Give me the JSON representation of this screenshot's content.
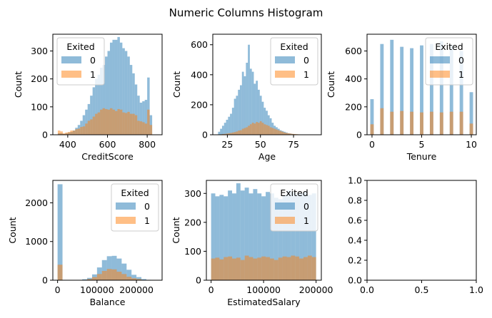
{
  "figure": {
    "title": "Numeric Columns Histogram"
  },
  "colors": {
    "series_0": "#1f77b4",
    "series_1": "#ff7f0e",
    "bar_alpha": 0.5
  },
  "chart_data": [
    {
      "type": "bar",
      "name": "CreditScore",
      "xlabel": "CreditScore",
      "ylabel": "Count",
      "xlim": [
        325,
        875
      ],
      "ylim": [
        0,
        360
      ],
      "xticks": [
        400,
        600,
        800
      ],
      "yticks": [
        0,
        100,
        200,
        300
      ],
      "legend": {
        "title": "Exited",
        "placement": "top-left",
        "labels": [
          "0",
          "1"
        ]
      },
      "bin_start": 350,
      "bin_width": 12.5,
      "series": [
        {
          "name": "0",
          "values": [
            5,
            5,
            3,
            5,
            8,
            10,
            15,
            25,
            35,
            50,
            70,
            90,
            110,
            140,
            170,
            200,
            215,
            240,
            250,
            280,
            300,
            330,
            340,
            340,
            350,
            330,
            310,
            300,
            280,
            250,
            220,
            180,
            140,
            115,
            120,
            125,
            205,
            70
          ]
        },
        {
          "name": "1",
          "values": [
            15,
            12,
            5,
            8,
            10,
            15,
            15,
            20,
            22,
            28,
            30,
            40,
            50,
            55,
            65,
            75,
            80,
            90,
            95,
            92,
            90,
            95,
            90,
            85,
            92,
            90,
            80,
            78,
            82,
            75,
            75,
            70,
            50,
            48,
            45,
            40,
            90,
            35
          ]
        }
      ]
    },
    {
      "type": "bar",
      "name": "Age",
      "xlabel": "Age",
      "ylabel": "Count",
      "xlim": [
        14,
        96
      ],
      "ylim": [
        0,
        670
      ],
      "xticks": [
        25,
        50,
        75
      ],
      "yticks": [
        0,
        200,
        400,
        600
      ],
      "legend": {
        "title": "Exited",
        "placement": "top-right",
        "labels": [
          "0",
          "1"
        ]
      },
      "bin_start": 18,
      "bin_width": 1.5,
      "series": [
        {
          "name": "0",
          "values": [
            20,
            40,
            60,
            80,
            100,
            120,
            140,
            180,
            240,
            260,
            300,
            330,
            420,
            390,
            480,
            600,
            440,
            420,
            340,
            360,
            300,
            260,
            220,
            180,
            160,
            130,
            110,
            80,
            60,
            50,
            40,
            30,
            25,
            20,
            15,
            10,
            8,
            5,
            4,
            3,
            2,
            2,
            1,
            1,
            1,
            1,
            0,
            0,
            1,
            1
          ]
        },
        {
          "name": "1",
          "values": [
            2,
            3,
            5,
            6,
            8,
            10,
            12,
            15,
            18,
            22,
            28,
            30,
            40,
            45,
            50,
            60,
            70,
            80,
            75,
            85,
            80,
            90,
            80,
            70,
            65,
            60,
            50,
            45,
            40,
            35,
            30,
            25,
            20,
            15,
            12,
            10,
            8,
            6,
            5,
            4,
            3,
            2,
            2,
            1,
            1,
            1,
            0,
            0,
            0,
            0
          ]
        }
      ]
    },
    {
      "type": "bar",
      "name": "Tenure",
      "xlabel": "Tenure",
      "ylabel": "Count",
      "xlim": [
        -0.5,
        10.5
      ],
      "ylim": [
        0,
        720
      ],
      "xticks": [
        0,
        5,
        10
      ],
      "yticks": [
        0,
        200,
        400,
        600
      ],
      "legend": {
        "title": "Exited",
        "placement": "top-right",
        "labels": [
          "0",
          "1"
        ]
      },
      "bin_start": -0.1,
      "bin_width": 0.5,
      "bar_width": 0.35,
      "series": [
        {
          "name": "0",
          "values": [
            255,
            650,
            680,
            630,
            620,
            640,
            650,
            670,
            640,
            600,
            305
          ]
        },
        {
          "name": "1",
          "values": [
            75,
            190,
            165,
            170,
            165,
            160,
            165,
            160,
            165,
            165,
            80
          ]
        }
      ],
      "categories": [
        0,
        1,
        2,
        3,
        4,
        5,
        6,
        7,
        8,
        9,
        10
      ]
    },
    {
      "type": "bar",
      "name": "Balance",
      "xlabel": "Balance",
      "ylabel": "Count",
      "xlim": [
        -12000,
        265000
      ],
      "ylim": [
        0,
        2580
      ],
      "xticks": [
        0,
        100000,
        200000
      ],
      "yticks": [
        0,
        1000,
        2000
      ],
      "legend": {
        "title": "Exited",
        "placement": "top-right",
        "labels": [
          "0",
          "1"
        ]
      },
      "bin_start": 0,
      "bin_width": 12500,
      "series": [
        {
          "name": "0",
          "values": [
            2480,
            0,
            0,
            0,
            5,
            25,
            60,
            150,
            330,
            520,
            620,
            630,
            560,
            430,
            270,
            140,
            80,
            30,
            10,
            5
          ]
        },
        {
          "name": "1",
          "values": [
            400,
            0,
            0,
            0,
            3,
            10,
            30,
            80,
            160,
            240,
            290,
            280,
            220,
            160,
            90,
            50,
            30,
            10,
            5,
            2
          ]
        }
      ]
    },
    {
      "type": "bar",
      "name": "EstimatedSalary",
      "xlabel": "EstimatedSalary",
      "ylabel": "Count",
      "xlim": [
        -9000,
        210000
      ],
      "ylim": [
        0,
        345
      ],
      "xticks": [
        0,
        100000,
        200000
      ],
      "yticks": [
        0,
        100,
        200,
        300
      ],
      "legend": {
        "title": "Exited",
        "placement": "top-right",
        "labels": [
          "0",
          "1"
        ]
      },
      "bin_start": 0,
      "bin_width": 8000,
      "series": [
        {
          "name": "0",
          "values": [
            300,
            290,
            295,
            290,
            310,
            300,
            335,
            310,
            320,
            300,
            315,
            300,
            290,
            305,
            300,
            285,
            280,
            295,
            310,
            305,
            300,
            300,
            305,
            295,
            300
          ]
        },
        {
          "name": "1",
          "values": [
            75,
            78,
            72,
            80,
            82,
            75,
            78,
            70,
            85,
            80,
            75,
            78,
            82,
            80,
            75,
            70,
            78,
            82,
            80,
            85,
            82,
            75,
            80,
            85,
            80
          ]
        }
      ]
    },
    {
      "type": "empty",
      "name": "empty-axes",
      "xlim": [
        0,
        1
      ],
      "ylim": [
        0,
        1
      ],
      "xticks": [
        0.0,
        0.5,
        1.0
      ],
      "yticks": [
        0.0,
        0.2,
        0.4,
        0.6,
        0.8,
        1.0
      ]
    }
  ]
}
